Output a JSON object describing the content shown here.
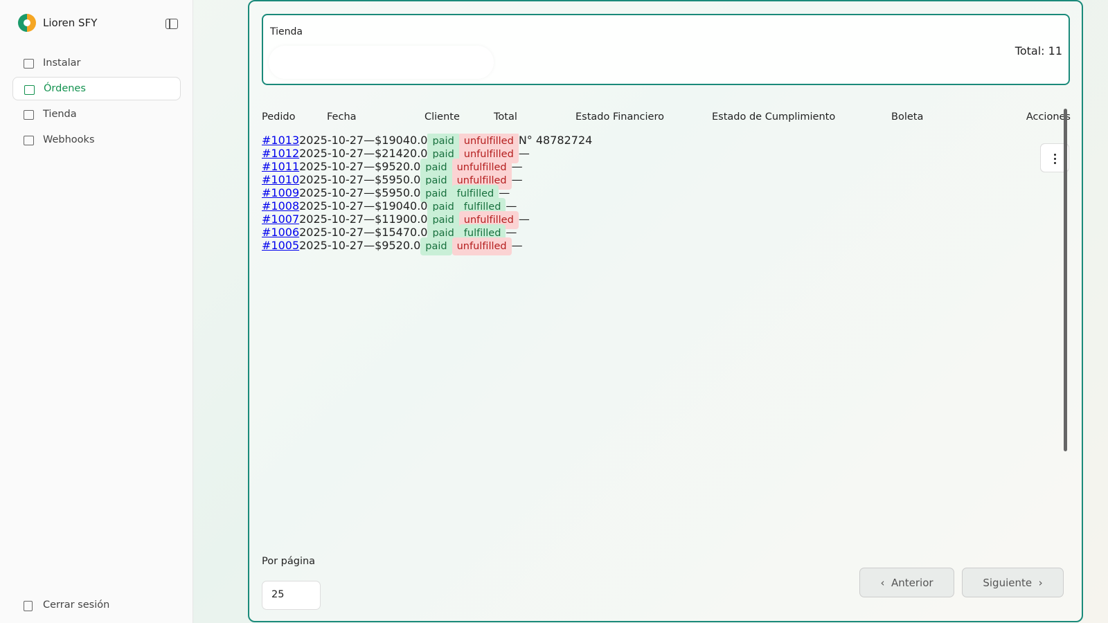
{
  "sidebar": {
    "brand": "Lioren SFY",
    "nav": [
      "Instalar",
      "Órdenes",
      "Tienda",
      "Webhooks"
    ],
    "logout": "Cerrar sesión"
  },
  "store": {
    "label": "Tienda",
    "total": "Total: 11"
  },
  "table": {
    "headers": [
      "Pedido",
      "Fecha",
      "Cliente",
      "Total",
      "Estado Financiero",
      "Estado de Cumplimiento",
      "Boleta",
      "Acciones"
    ],
    "rows": [
      [
        "#1013",
        "2025-10-27",
        "—",
        "$19040.0",
        "paid",
        "unfulfilled",
        "N° 48782724"
      ],
      [
        "#1012",
        "2025-10-27",
        "—",
        "$21420.0",
        "paid",
        "unfulfilled",
        "—"
      ],
      [
        "#1011",
        "2025-10-27",
        "—",
        "$9520.0",
        "paid",
        "unfulfilled",
        "—"
      ],
      [
        "#1010",
        "2025-10-27",
        "—",
        "$5950.0",
        "paid",
        "unfulfilled",
        "—"
      ],
      [
        "#1009",
        "2025-10-27",
        "—",
        "$5950.0",
        "paid",
        "fulfilled",
        "—"
      ],
      [
        "#1008",
        "2025-10-27",
        "—",
        "$19040.0",
        "paid",
        "fulfilled",
        "—"
      ],
      [
        "#1007",
        "2025-10-27",
        "—",
        "$11900.0",
        "paid",
        "unfulfilled",
        "—"
      ],
      [
        "#1006",
        "2025-10-27",
        "—",
        "$15470.0",
        "paid",
        "fulfilled",
        "—"
      ],
      [
        "#1005",
        "2025-10-27",
        "—",
        "$9520.0",
        "paid",
        "unfulfilled",
        "—"
      ]
    ]
  },
  "pagination": {
    "per_page_label": "Por página",
    "per_page": "25",
    "prev": "Anterior",
    "next": "Siguiente"
  }
}
